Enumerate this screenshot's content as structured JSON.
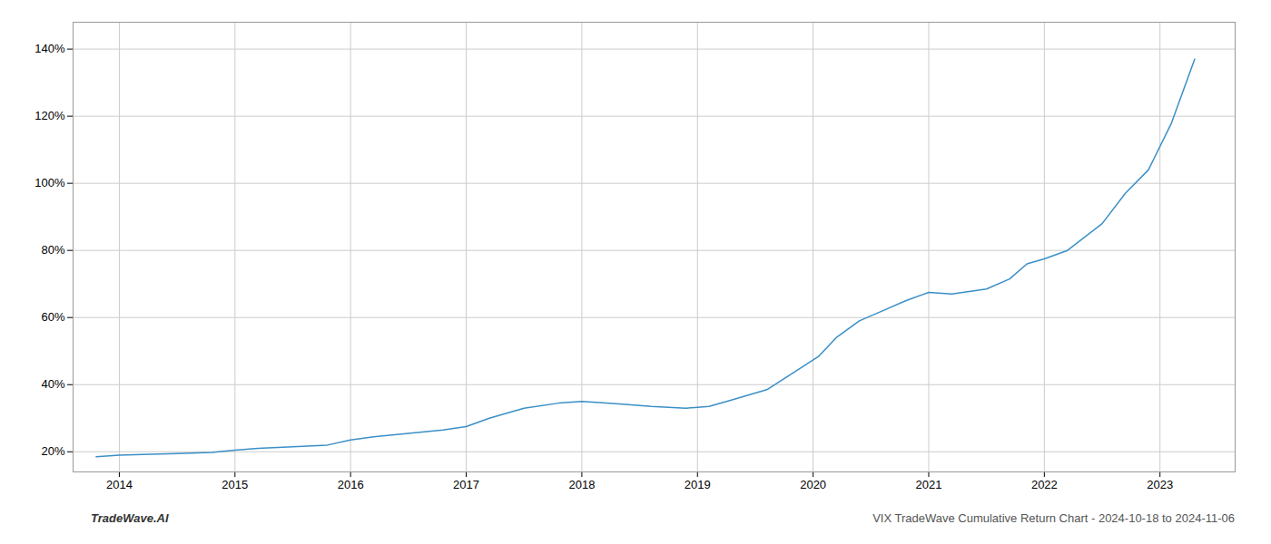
{
  "chart_data": {
    "type": "line",
    "x": [
      2013.8,
      2014.0,
      2014.2,
      2014.5,
      2014.8,
      2015.0,
      2015.2,
      2015.5,
      2015.8,
      2016.0,
      2016.2,
      2016.5,
      2016.8,
      2017.0,
      2017.2,
      2017.5,
      2017.8,
      2018.0,
      2018.15,
      2018.35,
      2018.6,
      2018.9,
      2019.1,
      2019.3,
      2019.6,
      2019.85,
      2020.05,
      2020.2,
      2020.4,
      2020.6,
      2020.8,
      2021.0,
      2021.2,
      2021.5,
      2021.7,
      2021.85,
      2022.0,
      2022.2,
      2022.5,
      2022.7,
      2022.9,
      2023.1,
      2023.3
    ],
    "values": [
      18.5,
      19.0,
      19.2,
      19.5,
      19.8,
      20.5,
      21.0,
      21.5,
      22.0,
      23.5,
      24.5,
      25.5,
      26.5,
      27.5,
      30.0,
      33.0,
      34.5,
      35.0,
      34.7,
      34.2,
      33.5,
      33.0,
      33.5,
      35.5,
      38.5,
      44.0,
      48.5,
      54.0,
      59.0,
      62.0,
      65.0,
      67.5,
      67.0,
      68.5,
      71.5,
      76.0,
      77.5,
      80.0,
      88.0,
      97.0,
      104.0,
      118.0,
      137.0
    ],
    "color": "#3a8fc7",
    "xlim": [
      2013.6,
      2023.65
    ],
    "ylim": [
      14,
      148
    ],
    "xticks": [
      2014,
      2015,
      2016,
      2017,
      2018,
      2019,
      2020,
      2021,
      2022,
      2023
    ],
    "yticks": [
      {
        "value": 20,
        "label": "20%"
      },
      {
        "value": 40,
        "label": "40%"
      },
      {
        "value": 60,
        "label": "60%"
      },
      {
        "value": 80,
        "label": "80%"
      },
      {
        "value": 100,
        "label": "100%"
      },
      {
        "value": 120,
        "label": "120%"
      },
      {
        "value": 140,
        "label": "140%"
      }
    ],
    "grid": true,
    "annotations": [
      "TradeWave.AI",
      "VIX TradeWave Cumulative Return Chart - 2024-10-18 to 2024-11-06"
    ]
  }
}
